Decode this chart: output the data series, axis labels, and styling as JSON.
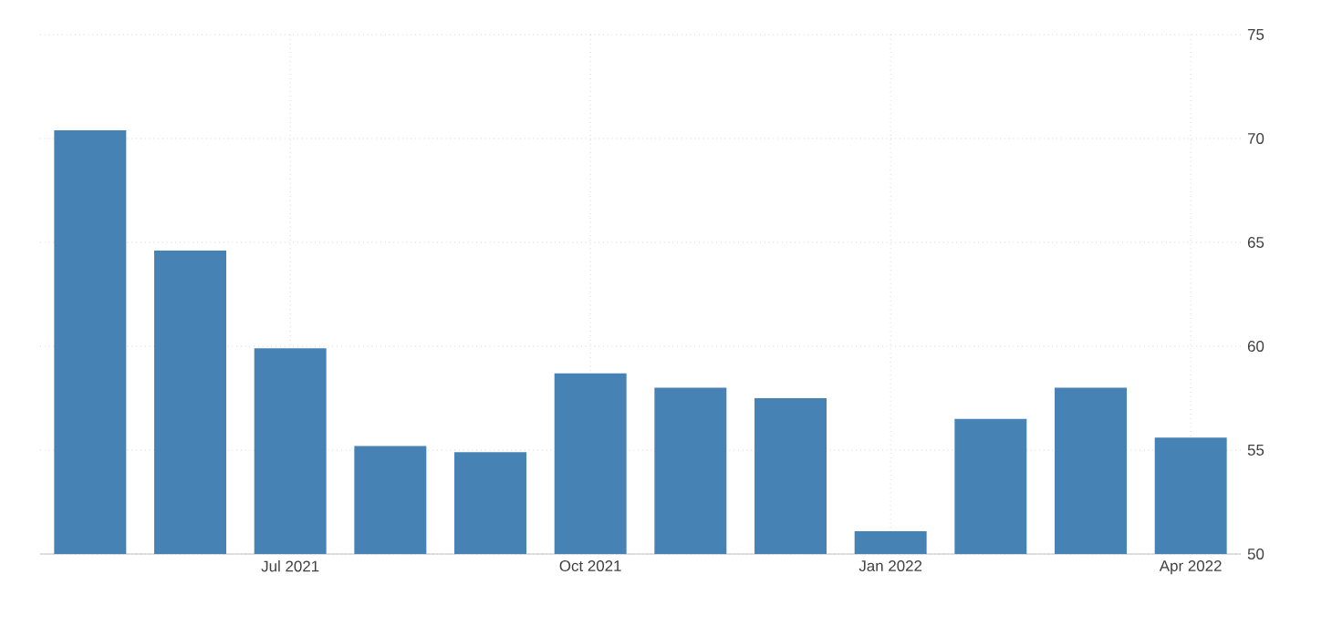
{
  "chart_data": {
    "type": "bar",
    "categories": [
      null,
      null,
      "Jul 2021",
      null,
      null,
      "Oct 2021",
      null,
      null,
      "Jan 2022",
      null,
      null,
      "Apr 2022"
    ],
    "values": [
      70.4,
      64.6,
      59.9,
      55.2,
      54.9,
      58.7,
      58.0,
      57.5,
      51.1,
      56.5,
      58.0,
      55.6
    ],
    "color": "#4682b4",
    "ylim": [
      50,
      75
    ],
    "yticks": [
      50,
      55,
      60,
      65,
      70,
      75
    ],
    "grid": true
  }
}
